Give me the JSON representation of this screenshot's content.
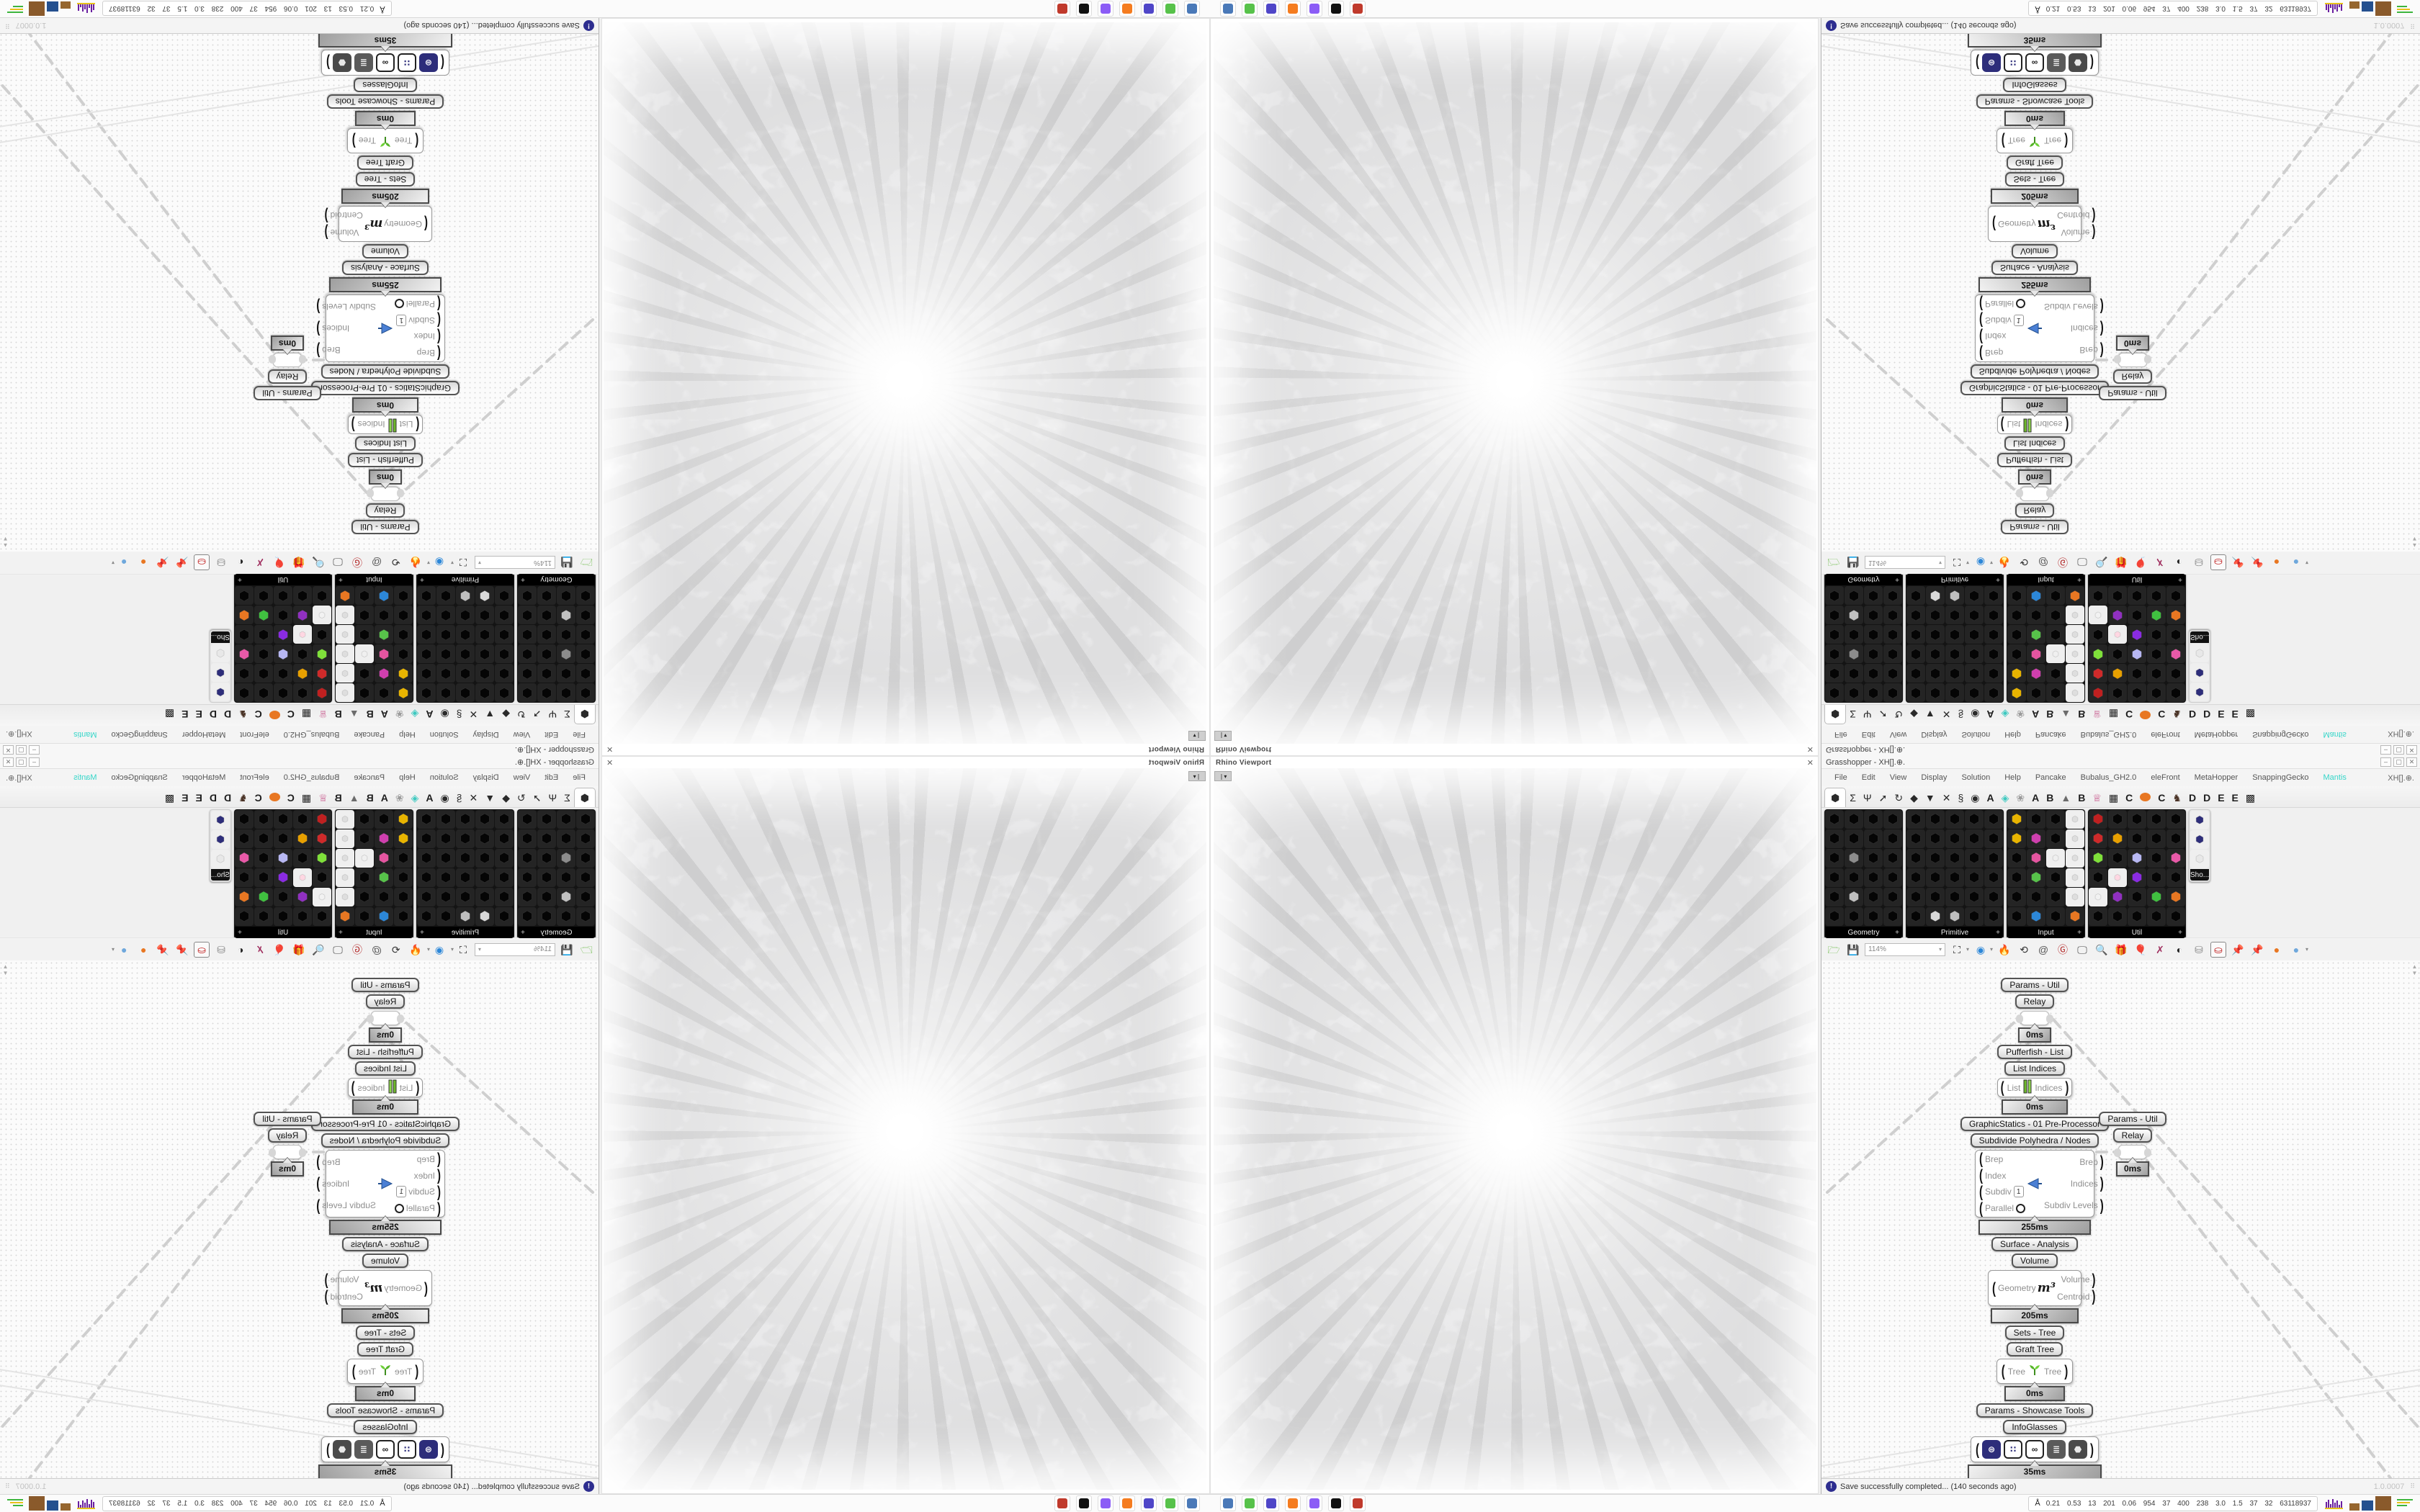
{
  "rhino": {
    "viewport_label": "Rhino Viewport",
    "close_glyph": "✕",
    "collapse_glyph": "❘▾"
  },
  "gh": {
    "title": "Grasshopper - XH[].⊕.",
    "window_buttons": {
      "min": "–",
      "max": "▢",
      "close": "✕"
    },
    "menu": [
      "File",
      "Edit",
      "View",
      "Display",
      "Solution",
      "Help",
      "Pancake",
      "Bubalus_GH2.0",
      "eleFront",
      "MetaHopper",
      "SnappingGecko",
      "Mantis"
    ],
    "menu_highlight": {
      "label": "Mantis",
      "color": "#35d6c9"
    },
    "menu_right": "XH[].⊕.",
    "tabs": {
      "glyphs": [
        "⬢",
        "Σ",
        "Ψ",
        "➚",
        "↻",
        "◆",
        "▼",
        "✕",
        "§",
        "◉"
      ],
      "letters": [
        {
          "g": "A"
        },
        {
          "g": "◈",
          "c": "#3ec9c0"
        },
        {
          "g": "❀",
          "c": "#9a9a9a"
        },
        {
          "g": "A"
        },
        {
          "g": "B"
        },
        {
          "g": "▲",
          "c": "#6b6b6b"
        },
        {
          "g": "B"
        },
        {
          "g": "♕",
          "c": "#c2447f"
        },
        {
          "g": "▦"
        },
        {
          "g": "C"
        },
        {
          "g": "dot",
          "c": "#e87722"
        },
        {
          "g": "C"
        },
        {
          "g": "♞",
          "c": "#4a3326"
        },
        {
          "g": "D"
        },
        {
          "g": "D"
        },
        {
          "g": "E"
        },
        {
          "g": "E"
        },
        {
          "g": "▩"
        }
      ]
    },
    "palettes": [
      {
        "label": "Geometry",
        "cols": 4,
        "rows": 6,
        "accents": {
          "9": "#8c8c8c",
          "17": "#c0c0c0"
        }
      },
      {
        "label": "Primitive",
        "cols": 5,
        "rows": 6,
        "accents": {
          "26": "#d9d9d9",
          "27": "#bfbfbf"
        }
      },
      {
        "label": "Input",
        "cols": 4,
        "rows": 6,
        "accents": {
          "0": "#e8b400",
          "4": "#e8b400",
          "5": "#cf3fae",
          "9": "#e555a0",
          "10": "#f0f0f0",
          "13": "#57c24a",
          "3": "#dedede",
          "7": "#dedede",
          "11": "#dedede",
          "15": "#dedede",
          "19": "#dedede",
          "21": "#2c87d8",
          "23": "#e87722"
        }
      },
      {
        "label": "Util",
        "cols": 5,
        "rows": 6,
        "accents": {
          "0": "#c02020",
          "5": "#cf2a2a",
          "6": "#e8a000",
          "10": "#7fe03a",
          "12": "#b7b7f2",
          "14": "#e859a8",
          "16": "#ffd7e2",
          "17": "#8a2be2",
          "20": "#f2f2f2",
          "21": "#9030c0",
          "23": "#40c040",
          "24": "#e87722"
        }
      },
      {
        "label": "Sho...",
        "cols": 1,
        "rows": 3,
        "mini": true,
        "accents": {
          "0": "#2d2d7a",
          "1": "#2d2d7a",
          "2": "#e8e8e8"
        }
      }
    ],
    "toolbar": {
      "zoom_value": "114%",
      "items": [
        {
          "name": "open-file-icon",
          "g": "🗁",
          "c": "#59b332"
        },
        {
          "name": "save-file-icon",
          "g": "💾",
          "c": "#3e63b8"
        },
        {
          "name": "zoom-select",
          "special": "zoom"
        },
        {
          "name": "frame-zoom-icon",
          "g": "⛶",
          "c": "#222",
          "dd": true
        },
        {
          "name": "preview-eye-icon",
          "g": "◉",
          "c": "#2c87d8",
          "dd": true
        },
        {
          "name": "paint-flame-icon",
          "g": "🔥",
          "c": "#d8402c"
        },
        {
          "name": "cylinder-rotate-icon",
          "g": "⟲",
          "c": "#333"
        },
        {
          "name": "at-icon",
          "g": "@",
          "c": "#555"
        },
        {
          "name": "gha-loader-icon",
          "g": "Ⓖ",
          "c": "#b22222"
        },
        {
          "name": "screen-pointer-icon",
          "g": "🖵",
          "c": "#444"
        },
        {
          "name": "find-dollar-icon",
          "g": "🔍",
          "c": "#2a5fa0"
        },
        {
          "name": "help-box-icon",
          "g": "🎁",
          "c": "#e555a0"
        },
        {
          "name": "balloon-icon",
          "g": "🎈",
          "c": "#8a8ae0"
        },
        {
          "name": "crossed-wires-icon",
          "g": "✗",
          "c": "#a03060"
        },
        {
          "name": "spheres-duo-icon",
          "g": "◐",
          "c": "#222"
        },
        {
          "name": "white-cylinders-icon",
          "g": "⛁",
          "c": "#888"
        },
        {
          "name": "red-cylinder-icon",
          "g": "⛀",
          "c": "#c01818",
          "sel": true
        },
        {
          "name": "pin-teal-icon",
          "g": "📌",
          "c": "#1f9e8e"
        },
        {
          "name": "pin-green-icon",
          "g": "📌",
          "c": "#4fae2f"
        },
        {
          "name": "ball-orange-icon",
          "g": "●",
          "c": "#e87722"
        },
        {
          "name": "ball-blue-icon",
          "g": "●",
          "c": "#6fa8dc",
          "dd": true
        }
      ]
    },
    "canvas": {
      "chain": [
        {
          "t": "tag",
          "text": "Params - Util"
        },
        {
          "t": "tag",
          "text": "Relay"
        },
        {
          "t": "relay"
        },
        {
          "t": "badge",
          "text": "0ms",
          "w": 46
        },
        {
          "t": "tag",
          "text": "Pufferfish - List"
        },
        {
          "t": "tag",
          "text": "List Indices"
        },
        {
          "t": "comp-li",
          "left": "List",
          "right": "Indices"
        },
        {
          "t": "badge",
          "text": "0ms",
          "w": 92
        },
        {
          "t": "tag",
          "text": "GraphicStatics - 01 Pre-Processor"
        },
        {
          "t": "tag",
          "text": "Subdivide Polyhedra / Nodes"
        },
        {
          "t": "comp-big",
          "left": [
            "Brep",
            "Index",
            "Subdiv",
            "Parallel"
          ],
          "right": [
            "Brep",
            "Indices",
            "Subdiv Levels"
          ],
          "subdiv_value": "1"
        },
        {
          "t": "badge",
          "text": "255ms",
          "w": 156
        },
        {
          "t": "tag",
          "text": "Surface - Analysis"
        },
        {
          "t": "tag",
          "text": "Volume"
        },
        {
          "t": "comp-vol",
          "left": "Geometry",
          "right": [
            "Volume",
            "Centroid"
          ],
          "icon": "m³"
        },
        {
          "t": "badge",
          "text": "205ms",
          "w": 122
        },
        {
          "t": "tag",
          "text": "Sets - Tree"
        },
        {
          "t": "tag",
          "text": "Graft Tree"
        },
        {
          "t": "comp-tree",
          "left": "Tree",
          "right": "Tree"
        },
        {
          "t": "badge",
          "text": "0ms",
          "w": 84
        },
        {
          "t": "tag",
          "text": "Params - Showcase Tools"
        },
        {
          "t": "tag",
          "text": "InfoGlasses"
        },
        {
          "t": "comp-glasses"
        },
        {
          "t": "badge",
          "text": "35ms",
          "w": 186
        }
      ],
      "side_chain": [
        {
          "t": "tag",
          "text": "Params - Util"
        },
        {
          "t": "tag",
          "text": "Relay"
        },
        {
          "t": "relay"
        },
        {
          "t": "badge",
          "text": "0ms",
          "w": 46
        }
      ],
      "glasses_icons": [
        {
          "name": "infoglasses-circle-icon",
          "bg": "#2d2d7a",
          "fg": "#ffffff",
          "g": "⊜"
        },
        {
          "name": "infoglasses-grid-icon",
          "bg": "#ffffff",
          "fg": "#2d2d7a",
          "g": "∷",
          "border": true
        },
        {
          "name": "goggles-icon",
          "bg": "#ffffff",
          "fg": "#1a1a1a",
          "g": "∞",
          "border": true
        },
        {
          "name": "archive-drawer-icon",
          "bg": "#5a5a5a",
          "fg": "#eeeeee",
          "g": "≣"
        },
        {
          "name": "puzzle-piece-icon",
          "bg": "#4a4a4a",
          "fg": "#e8e8e8",
          "g": "⬣"
        }
      ]
    },
    "status": {
      "text": "Save successfully completed... (140 seconds ago)",
      "info_glyph": "!",
      "version": "1.0.0007"
    }
  },
  "bottom": {
    "taskbar": [
      {
        "name": "screenshot-app-icon",
        "color": "#4a79b8"
      },
      {
        "name": "console-app-icon",
        "color": "#57c24a"
      },
      {
        "name": "floppy64-app-icon",
        "color": "#4f46c8"
      },
      {
        "name": "firefox-app-icon",
        "color": "#f57c1f"
      },
      {
        "name": "purple-app-icon",
        "color": "#8b5cf6"
      },
      {
        "name": "cat-app-icon",
        "color": "#111111"
      },
      {
        "name": "red-gear-app-icon",
        "color": "#c0392b"
      }
    ],
    "person_glyph": "Å",
    "status_numbers": "0.21 0.53 13 201 0.06 954 37 400 238 3.0 1.5 37 32 63118937",
    "histogram": [
      8,
      11,
      5,
      12,
      7,
      10,
      4,
      9
    ],
    "blocks": [
      {
        "color": "#96662e",
        "w": 14,
        "h": 10
      },
      {
        "color": "#24508f",
        "w": 16,
        "h": 14
      },
      {
        "color": "#8a5a2b",
        "w": 22,
        "h": 20
      }
    ],
    "green_lines": 3
  }
}
